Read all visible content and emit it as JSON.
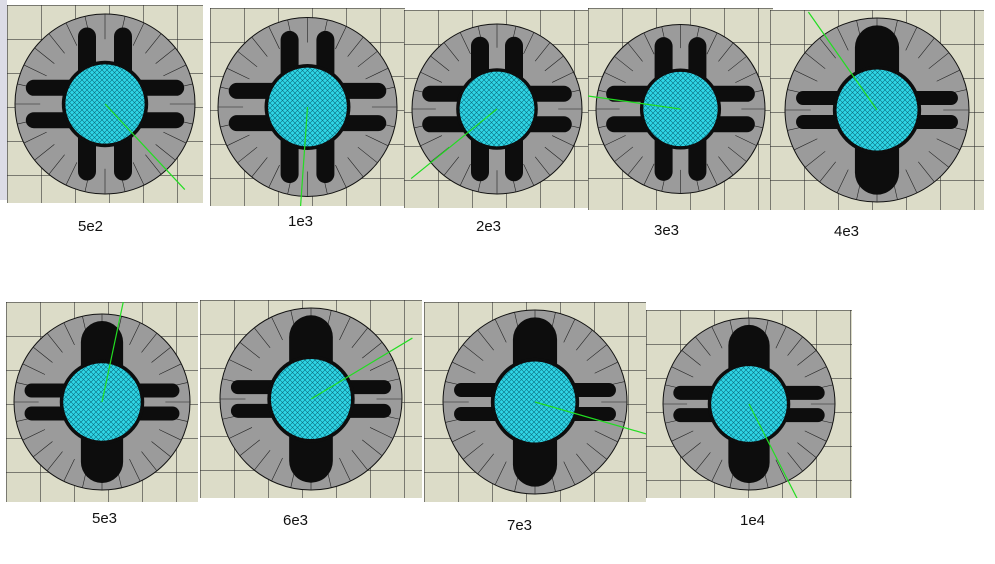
{
  "labels": [
    "5e2",
    "1e3",
    "2e3",
    "3e3",
    "4e3",
    "5e3",
    "6e3",
    "7e3",
    "1e4"
  ],
  "colors": {
    "background": "#dcdcc8",
    "disc": "#9b9b9b",
    "mesh": "#2fd6e6",
    "blob": "#0d0d0d",
    "ray": "#22dd22"
  }
}
